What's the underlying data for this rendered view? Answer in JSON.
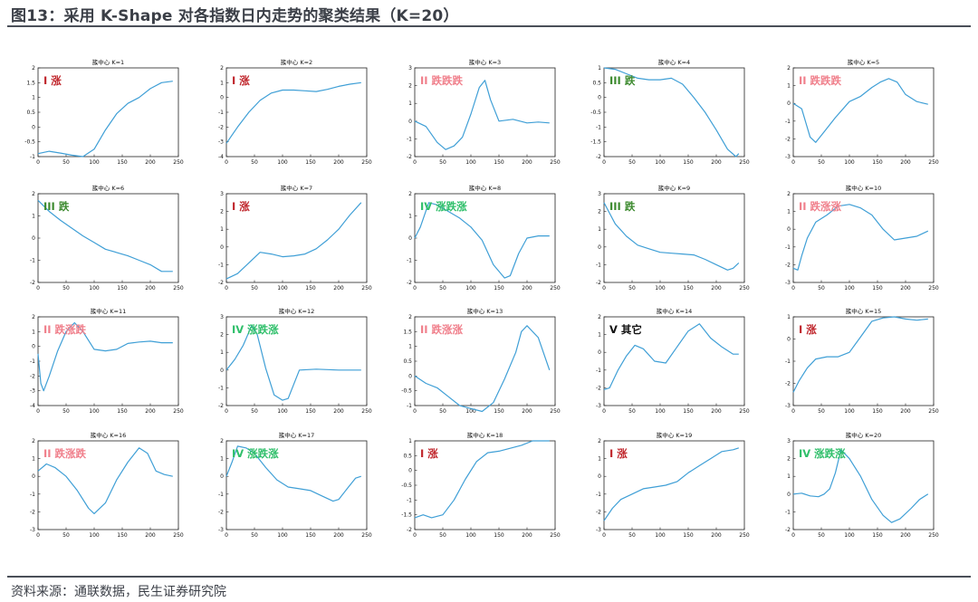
{
  "title": "图13：采用 K-Shape 对各指数日内走势的聚类结果（K=20）",
  "source": "资料来源：通联数据，民生证券研究院",
  "colors": {
    "line": "#3f9fd6",
    "axis": "#222222",
    "label_I": "#c0272d",
    "label_II": "#f07f8b",
    "label_III": "#3c8a2e",
    "label_IV": "#2fbf6a",
    "label_V": "#111111"
  },
  "chart_data": [
    {
      "type": "line",
      "title": "簇中心 K=1",
      "label": "I 涨",
      "label_class": "I",
      "xlim": [
        0,
        250
      ],
      "xticks": [
        0,
        50,
        100,
        150,
        200,
        250
      ],
      "ylim": [
        -1,
        2
      ],
      "yticks": [
        -1,
        -0.5,
        0,
        0.5,
        1,
        1.5,
        2
      ],
      "x": [
        0,
        20,
        40,
        60,
        80,
        100,
        120,
        140,
        160,
        180,
        200,
        220,
        240
      ],
      "y": [
        -0.9,
        -0.82,
        -0.88,
        -0.95,
        -1.0,
        -0.75,
        -0.1,
        0.45,
        0.8,
        1.0,
        1.3,
        1.5,
        1.55
      ]
    },
    {
      "type": "line",
      "title": "簇中心 K=2",
      "label": "I 涨",
      "label_class": "I",
      "xlim": [
        0,
        250
      ],
      "xticks": [
        0,
        50,
        100,
        150,
        200,
        250
      ],
      "ylim": [
        -4,
        2
      ],
      "yticks": [
        -4,
        -3,
        -2,
        -1,
        0,
        1,
        2
      ],
      "x": [
        0,
        20,
        40,
        60,
        80,
        100,
        120,
        140,
        160,
        180,
        200,
        220,
        240
      ],
      "y": [
        -3.1,
        -2.0,
        -1.0,
        -0.2,
        0.3,
        0.5,
        0.5,
        0.45,
        0.4,
        0.55,
        0.75,
        0.9,
        1.0
      ]
    },
    {
      "type": "line",
      "title": "簇中心 K=3",
      "label": "II 跌跌跌",
      "label_class": "II",
      "xlim": [
        0,
        250
      ],
      "xticks": [
        0,
        50,
        100,
        150,
        200,
        250
      ],
      "ylim": [
        -2,
        3
      ],
      "yticks": [
        -2,
        -1,
        0,
        1,
        2,
        3
      ],
      "x": [
        0,
        20,
        40,
        55,
        70,
        85,
        100,
        115,
        125,
        135,
        150,
        175,
        200,
        220,
        240
      ],
      "y": [
        0.0,
        -0.3,
        -1.2,
        -1.6,
        -1.4,
        -0.9,
        0.4,
        1.9,
        2.3,
        1.2,
        0.0,
        0.1,
        -0.1,
        -0.05,
        -0.1
      ]
    },
    {
      "type": "line",
      "title": "簇中心 K=4",
      "label": "III 跌",
      "label_class": "III",
      "xlim": [
        0,
        250
      ],
      "xticks": [
        0,
        50,
        100,
        150,
        200,
        250
      ],
      "ylim": [
        -2,
        1
      ],
      "yticks": [
        -2,
        -1.5,
        -1,
        -0.5,
        0,
        0.5,
        1
      ],
      "x": [
        0,
        20,
        40,
        60,
        80,
        100,
        120,
        140,
        160,
        180,
        200,
        220,
        235,
        240
      ],
      "y": [
        1.0,
        0.95,
        0.8,
        0.65,
        0.6,
        0.6,
        0.65,
        0.45,
        0.0,
        -0.5,
        -1.1,
        -1.75,
        -2.0,
        -1.9
      ]
    },
    {
      "type": "line",
      "title": "簇中心 K=5",
      "label": "II 跌跌跌",
      "label_class": "II",
      "xlim": [
        0,
        250
      ],
      "xticks": [
        0,
        50,
        100,
        150,
        200,
        250
      ],
      "ylim": [
        -3,
        2
      ],
      "yticks": [
        -3,
        -2,
        -1,
        0,
        1,
        2
      ],
      "x": [
        0,
        15,
        30,
        40,
        55,
        75,
        100,
        120,
        140,
        155,
        170,
        185,
        200,
        220,
        240
      ],
      "y": [
        0.0,
        -0.3,
        -1.9,
        -2.2,
        -1.6,
        -0.8,
        0.1,
        0.4,
        0.9,
        1.2,
        1.4,
        1.2,
        0.5,
        0.1,
        -0.05
      ]
    },
    {
      "type": "line",
      "title": "簇中心 K=6",
      "label": "III 跌",
      "label_class": "III",
      "xlim": [
        0,
        250
      ],
      "xticks": [
        0,
        50,
        100,
        150,
        200,
        250
      ],
      "ylim": [
        -2,
        2
      ],
      "yticks": [
        -2,
        -1,
        0,
        1,
        2
      ],
      "x": [
        0,
        20,
        40,
        60,
        80,
        100,
        120,
        140,
        160,
        180,
        200,
        220,
        240
      ],
      "y": [
        1.7,
        1.2,
        0.8,
        0.45,
        0.1,
        -0.2,
        -0.5,
        -0.65,
        -0.8,
        -1.0,
        -1.2,
        -1.5,
        -1.5
      ]
    },
    {
      "type": "line",
      "title": "簇中心 K=7",
      "label": "I 涨",
      "label_class": "I",
      "xlim": [
        0,
        250
      ],
      "xticks": [
        0,
        50,
        100,
        150,
        200,
        250
      ],
      "ylim": [
        -2,
        3
      ],
      "yticks": [
        -2,
        -1,
        0,
        1,
        2,
        3
      ],
      "x": [
        0,
        20,
        40,
        60,
        80,
        100,
        120,
        140,
        160,
        180,
        200,
        220,
        240
      ],
      "y": [
        -1.8,
        -1.5,
        -0.9,
        -0.3,
        -0.4,
        -0.55,
        -0.5,
        -0.4,
        -0.1,
        0.4,
        1.0,
        1.8,
        2.5
      ]
    },
    {
      "type": "line",
      "title": "簇中心 K=8",
      "label": "IV 涨跌涨",
      "label_class": "IV",
      "xlim": [
        0,
        250
      ],
      "xticks": [
        0,
        50,
        100,
        150,
        200,
        250
      ],
      "ylim": [
        -2,
        2
      ],
      "yticks": [
        -2,
        -1,
        0,
        1,
        2
      ],
      "x": [
        0,
        10,
        25,
        40,
        60,
        80,
        100,
        120,
        140,
        160,
        170,
        185,
        200,
        220,
        240
      ],
      "y": [
        0.0,
        0.5,
        1.6,
        1.5,
        1.2,
        0.9,
        0.5,
        -0.1,
        -1.2,
        -1.8,
        -1.7,
        -0.7,
        0.0,
        0.1,
        0.1
      ]
    },
    {
      "type": "line",
      "title": "簇中心 K=9",
      "label": "III 跌",
      "label_class": "III",
      "xlim": [
        0,
        250
      ],
      "xticks": [
        0,
        50,
        100,
        150,
        200,
        250
      ],
      "ylim": [
        -2,
        3
      ],
      "yticks": [
        -2,
        -1,
        0,
        1,
        2,
        3
      ],
      "x": [
        0,
        10,
        20,
        40,
        60,
        80,
        100,
        120,
        140,
        160,
        180,
        200,
        220,
        230,
        240
      ],
      "y": [
        2.5,
        1.9,
        1.3,
        0.6,
        0.1,
        -0.1,
        -0.3,
        -0.35,
        -0.4,
        -0.45,
        -0.7,
        -1.0,
        -1.3,
        -1.2,
        -0.9
      ]
    },
    {
      "type": "line",
      "title": "簇中心 K=10",
      "label": "II 跌涨涨",
      "label_class": "II",
      "xlim": [
        0,
        250
      ],
      "xticks": [
        0,
        50,
        100,
        150,
        200,
        250
      ],
      "ylim": [
        -3,
        2
      ],
      "yticks": [
        -3,
        -2,
        -1,
        0,
        1,
        2
      ],
      "x": [
        0,
        8,
        15,
        25,
        40,
        60,
        80,
        100,
        120,
        140,
        160,
        180,
        200,
        220,
        240
      ],
      "y": [
        -2.2,
        -2.3,
        -1.5,
        -0.5,
        0.4,
        0.8,
        1.3,
        1.4,
        1.2,
        0.8,
        0.0,
        -0.6,
        -0.5,
        -0.4,
        -0.1
      ]
    },
    {
      "type": "line",
      "title": "簇中心 K=11",
      "label": "II 跌涨跌",
      "label_class": "II",
      "xlim": [
        0,
        250
      ],
      "xticks": [
        0,
        50,
        100,
        150,
        200,
        250
      ],
      "ylim": [
        -4,
        2
      ],
      "yticks": [
        -4,
        -3,
        -2,
        -1,
        0,
        1,
        2
      ],
      "x": [
        0,
        5,
        10,
        20,
        35,
        50,
        65,
        80,
        100,
        120,
        140,
        160,
        180,
        200,
        220,
        240
      ],
      "y": [
        -0.5,
        -2.5,
        -3.0,
        -2.0,
        -0.3,
        1.0,
        1.6,
        1.0,
        -0.2,
        -0.3,
        -0.2,
        0.2,
        0.3,
        0.35,
        0.25,
        0.25
      ]
    },
    {
      "type": "line",
      "title": "簇中心 K=12",
      "label": "IV 涨跌涨",
      "label_class": "IV",
      "xlim": [
        0,
        250
      ],
      "xticks": [
        0,
        50,
        100,
        150,
        200,
        250
      ],
      "ylim": [
        -2,
        3
      ],
      "yticks": [
        -2,
        -1,
        0,
        1,
        2,
        3
      ],
      "x": [
        0,
        15,
        30,
        45,
        55,
        70,
        85,
        100,
        110,
        130,
        160,
        200,
        240
      ],
      "y": [
        0.0,
        0.6,
        1.4,
        2.5,
        2.0,
        0.1,
        -1.4,
        -1.7,
        -1.6,
        0.0,
        0.05,
        0.0,
        0.0
      ]
    },
    {
      "type": "line",
      "title": "簇中心 K=13",
      "label": "II 跌涨涨",
      "label_class": "II",
      "xlim": [
        0,
        250
      ],
      "xticks": [
        0,
        50,
        100,
        150,
        200,
        250
      ],
      "ylim": [
        -1,
        2
      ],
      "yticks": [
        -1,
        -0.5,
        0,
        0.5,
        1,
        1.5,
        2
      ],
      "x": [
        0,
        20,
        40,
        60,
        80,
        100,
        120,
        140,
        160,
        180,
        190,
        200,
        220,
        240
      ],
      "y": [
        0.0,
        -0.25,
        -0.4,
        -0.7,
        -1.0,
        -1.1,
        -1.2,
        -0.9,
        -0.1,
        0.8,
        1.5,
        1.7,
        1.3,
        0.2
      ]
    },
    {
      "type": "line",
      "title": "簇中心 K=14",
      "label": "V 其它",
      "label_class": "V",
      "xlim": [
        0,
        250
      ],
      "xticks": [
        0,
        50,
        100,
        150,
        200,
        250
      ],
      "ylim": [
        -3,
        2
      ],
      "yticks": [
        -3,
        -2,
        -1,
        0,
        1,
        2
      ],
      "x": [
        0,
        10,
        25,
        40,
        55,
        70,
        90,
        110,
        130,
        150,
        170,
        190,
        210,
        230,
        240
      ],
      "y": [
        -2.1,
        -2.0,
        -1.0,
        -0.2,
        0.4,
        0.2,
        -0.5,
        -0.6,
        0.3,
        1.2,
        1.6,
        0.8,
        0.3,
        -0.1,
        -0.1
      ]
    },
    {
      "type": "line",
      "title": "簇中心 K=15",
      "label": "I 涨",
      "label_class": "I",
      "xlim": [
        0,
        250
      ],
      "xticks": [
        0,
        50,
        100,
        150,
        200,
        250
      ],
      "ylim": [
        -3,
        1
      ],
      "yticks": [
        -3,
        -2,
        -1,
        0,
        1
      ],
      "x": [
        0,
        10,
        25,
        40,
        60,
        80,
        100,
        120,
        140,
        160,
        180,
        200,
        220,
        240
      ],
      "y": [
        -2.4,
        -1.9,
        -1.3,
        -0.9,
        -0.8,
        -0.8,
        -0.6,
        0.1,
        0.8,
        0.95,
        1.0,
        0.9,
        0.85,
        0.9
      ]
    },
    {
      "type": "line",
      "title": "簇中心 K=16",
      "label": "II 跌涨跌",
      "label_class": "II",
      "xlim": [
        0,
        250
      ],
      "xticks": [
        0,
        50,
        100,
        150,
        200,
        250
      ],
      "ylim": [
        -3,
        2
      ],
      "yticks": [
        -3,
        -2,
        -1,
        0,
        1,
        2
      ],
      "x": [
        0,
        15,
        30,
        50,
        70,
        90,
        100,
        120,
        140,
        160,
        180,
        195,
        210,
        225,
        240
      ],
      "y": [
        0.3,
        0.7,
        0.5,
        0.0,
        -0.8,
        -1.8,
        -2.1,
        -1.5,
        -0.2,
        0.8,
        1.6,
        1.3,
        0.3,
        0.1,
        0.0
      ]
    },
    {
      "type": "line",
      "title": "簇中心 K=17",
      "label": "IV 涨跌涨",
      "label_class": "IV",
      "xlim": [
        0,
        250
      ],
      "xticks": [
        0,
        50,
        100,
        150,
        200,
        250
      ],
      "ylim": [
        -3,
        2
      ],
      "yticks": [
        -3,
        -2,
        -1,
        0,
        1,
        2
      ],
      "x": [
        0,
        10,
        20,
        35,
        50,
        70,
        90,
        110,
        130,
        150,
        170,
        190,
        200,
        215,
        230,
        240
      ],
      "y": [
        0.0,
        0.8,
        1.7,
        1.6,
        1.3,
        0.5,
        -0.2,
        -0.6,
        -0.7,
        -0.8,
        -1.1,
        -1.4,
        -1.3,
        -0.7,
        -0.1,
        0.0
      ]
    },
    {
      "type": "line",
      "title": "簇中心 K=18",
      "label": "I 涨",
      "label_class": "I",
      "xlim": [
        0,
        250
      ],
      "xticks": [
        0,
        50,
        100,
        150,
        200,
        250
      ],
      "ylim": [
        -2,
        1
      ],
      "yticks": [
        -2,
        -1.5,
        -1,
        -0.5,
        0,
        0.5,
        1
      ],
      "x": [
        0,
        15,
        30,
        50,
        70,
        90,
        110,
        130,
        150,
        170,
        190,
        210,
        230,
        240
      ],
      "y": [
        -1.6,
        -1.5,
        -1.6,
        -1.5,
        -1.0,
        -0.3,
        0.3,
        0.6,
        0.65,
        0.75,
        0.85,
        1.0,
        1.0,
        1.0
      ]
    },
    {
      "type": "line",
      "title": "簇中心 K=19",
      "label": "I 涨",
      "label_class": "I",
      "xlim": [
        0,
        250
      ],
      "xticks": [
        0,
        50,
        100,
        150,
        200,
        250
      ],
      "ylim": [
        -3,
        2
      ],
      "yticks": [
        -3,
        -2,
        -1,
        0,
        1,
        2
      ],
      "x": [
        0,
        15,
        30,
        50,
        70,
        90,
        110,
        130,
        150,
        170,
        190,
        210,
        230,
        240
      ],
      "y": [
        -2.5,
        -1.8,
        -1.3,
        -1.0,
        -0.7,
        -0.6,
        -0.5,
        -0.3,
        0.2,
        0.6,
        1.0,
        1.4,
        1.5,
        1.6
      ]
    },
    {
      "type": "line",
      "title": "簇中心 K=20",
      "label": "IV 涨跌涨",
      "label_class": "IV",
      "xlim": [
        0,
        250
      ],
      "xticks": [
        0,
        50,
        100,
        150,
        200,
        250
      ],
      "ylim": [
        -2,
        3
      ],
      "yticks": [
        -2,
        -1,
        0,
        1,
        2,
        3
      ],
      "x": [
        0,
        15,
        30,
        45,
        55,
        65,
        75,
        85,
        100,
        120,
        140,
        160,
        175,
        190,
        210,
        225,
        240
      ],
      "y": [
        0.0,
        0.05,
        -0.1,
        -0.15,
        0.0,
        0.3,
        1.2,
        2.5,
        2.0,
        1.0,
        -0.3,
        -1.2,
        -1.6,
        -1.4,
        -0.8,
        -0.3,
        0.0
      ]
    }
  ]
}
